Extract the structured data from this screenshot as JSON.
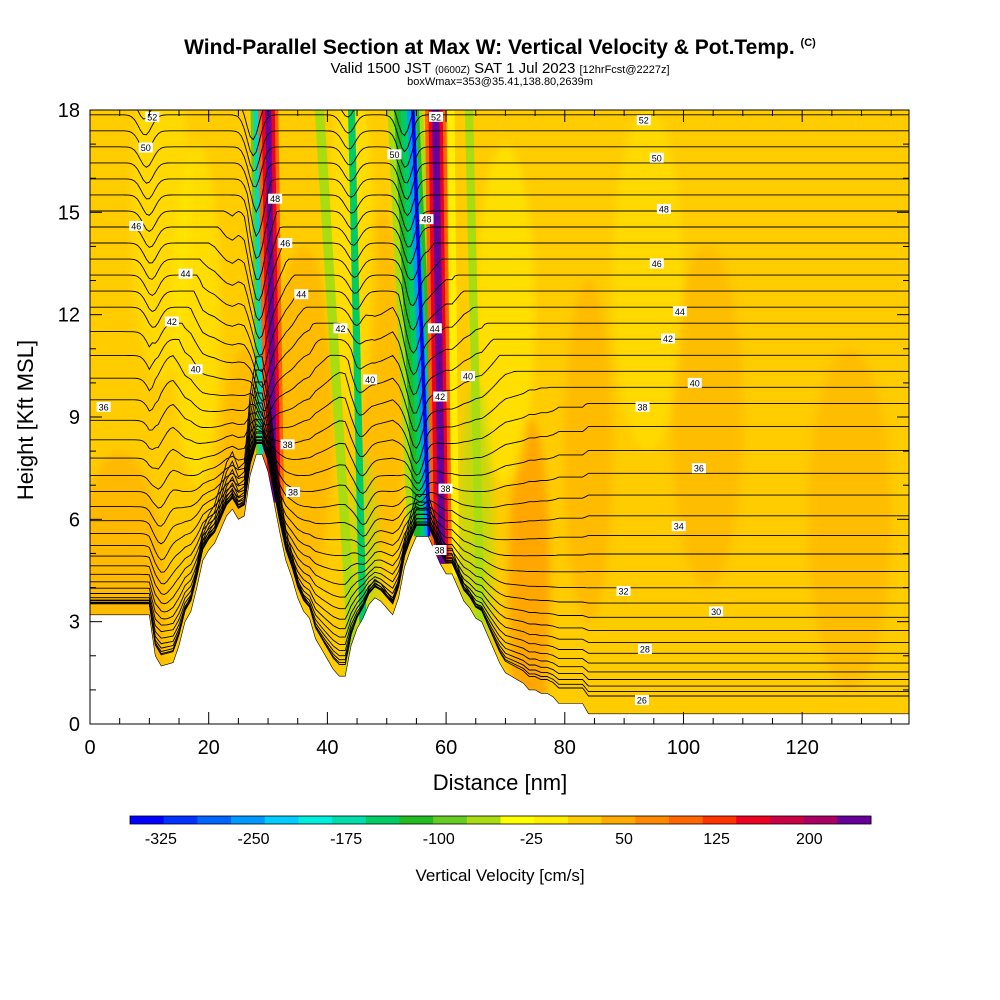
{
  "header": {
    "title": "Wind-Parallel Section at Max W: Vertical Velocity & Pot.Temp.",
    "title_mark": "(C)",
    "valid_prefix": "Valid 1500 JST ",
    "valid_small": "(0600Z)",
    "valid_main": " SAT 1 Jul 2023 ",
    "valid_suffix": "[12hrFcst@2227z]",
    "subline": "boxWmax=353@35.41,138.80,2639m"
  },
  "chart_data": {
    "type": "contour-section",
    "xlabel": "Distance [nm]",
    "ylabel": "Height [Kft MSL]",
    "xlim": [
      0,
      138
    ],
    "ylim": [
      0,
      18
    ],
    "xticks": [
      0,
      20,
      40,
      60,
      80,
      100,
      120
    ],
    "yticks": [
      0,
      3,
      6,
      9,
      12,
      15,
      18
    ],
    "colorbar": {
      "label": "Vertical Velocity [cm/s]",
      "tick_labels": [
        "-325",
        "-250",
        "-175",
        "-100",
        "-25",
        "50",
        "125",
        "200"
      ],
      "tick_values": [
        -325,
        -250,
        -175,
        -100,
        -25,
        50,
        125,
        200
      ],
      "range": [
        -350,
        250
      ],
      "colors": [
        "#0000ff",
        "#0033ff",
        "#0066ff",
        "#0099ff",
        "#00ccff",
        "#00eedd",
        "#00ddaa",
        "#00cc66",
        "#22bb22",
        "#66cc22",
        "#aadd11",
        "#ffff00",
        "#ffee00",
        "#ffcc00",
        "#ffaa00",
        "#ff8800",
        "#ff6600",
        "#ff3300",
        "#ee0022",
        "#cc0044",
        "#aa0066",
        "#660099"
      ]
    },
    "theta_contour_labels": [
      {
        "label": "52",
        "x": 10.5,
        "y": 17.8
      },
      {
        "label": "52",
        "x": 58.3,
        "y": 17.8
      },
      {
        "label": "52",
        "x": 93.3,
        "y": 17.7
      },
      {
        "label": "50",
        "x": 9.4,
        "y": 16.9
      },
      {
        "label": "50",
        "x": 51.3,
        "y": 16.7
      },
      {
        "label": "50",
        "x": 95.5,
        "y": 16.6
      },
      {
        "label": "48",
        "x": 31.2,
        "y": 15.4
      },
      {
        "label": "48",
        "x": 56.7,
        "y": 14.8
      },
      {
        "label": "48",
        "x": 96.7,
        "y": 15.1
      },
      {
        "label": "46",
        "x": 7.8,
        "y": 14.6
      },
      {
        "label": "46",
        "x": 32.9,
        "y": 14.1
      },
      {
        "label": "46",
        "x": 95.5,
        "y": 13.5
      },
      {
        "label": "44",
        "x": 16.1,
        "y": 13.2
      },
      {
        "label": "44",
        "x": 35.6,
        "y": 12.6
      },
      {
        "label": "44",
        "x": 58.1,
        "y": 11.6
      },
      {
        "label": "44",
        "x": 99.4,
        "y": 12.1
      },
      {
        "label": "42",
        "x": 13.8,
        "y": 11.8
      },
      {
        "label": "42",
        "x": 42.2,
        "y": 11.6
      },
      {
        "label": "42",
        "x": 59.0,
        "y": 9.6
      },
      {
        "label": "42",
        "x": 97.4,
        "y": 11.3
      },
      {
        "label": "40",
        "x": 17.8,
        "y": 10.4
      },
      {
        "label": "40",
        "x": 47.2,
        "y": 10.1
      },
      {
        "label": "40",
        "x": 63.7,
        "y": 10.2
      },
      {
        "label": "40",
        "x": 101.9,
        "y": 10.0
      },
      {
        "label": "38",
        "x": 93.1,
        "y": 9.3
      },
      {
        "label": "38",
        "x": 33.3,
        "y": 8.2
      },
      {
        "label": "38",
        "x": 59.9,
        "y": 6.9
      },
      {
        "label": "38",
        "x": 34.2,
        "y": 6.8
      },
      {
        "label": "38",
        "x": 58.9,
        "y": 5.1
      },
      {
        "label": "36",
        "x": 2.3,
        "y": 9.3
      },
      {
        "label": "36",
        "x": 102.6,
        "y": 7.5
      },
      {
        "label": "34",
        "x": 99.2,
        "y": 5.8
      },
      {
        "label": "32",
        "x": 89.9,
        "y": 3.9
      },
      {
        "label": "30",
        "x": 105.5,
        "y": 3.3
      },
      {
        "label": "28",
        "x": 93.5,
        "y": 2.2
      },
      {
        "label": "26",
        "x": 93.0,
        "y": 0.7
      }
    ],
    "terrain_profile": [
      [
        0,
        3.2
      ],
      [
        10,
        3.2
      ],
      [
        11,
        2
      ],
      [
        12,
        1.7
      ],
      [
        14,
        1.8
      ],
      [
        15,
        2.3
      ],
      [
        16,
        3
      ],
      [
        17,
        3.3
      ],
      [
        18,
        4
      ],
      [
        19,
        4.8
      ],
      [
        20,
        5.1
      ],
      [
        21,
        5.3
      ],
      [
        22,
        5.7
      ],
      [
        23,
        6.1
      ],
      [
        24,
        6.3
      ],
      [
        25,
        6.0
      ],
      [
        26,
        6.1
      ],
      [
        27,
        7.3
      ],
      [
        28,
        7.9
      ],
      [
        29,
        7.9
      ],
      [
        30,
        7.4
      ],
      [
        31,
        6.5
      ],
      [
        32,
        5.6
      ],
      [
        33,
        4.8
      ],
      [
        34,
        4.3
      ],
      [
        35,
        3.7
      ],
      [
        36,
        3.3
      ],
      [
        37,
        3.1
      ],
      [
        38,
        2.5
      ],
      [
        39,
        2.2
      ],
      [
        40,
        1.9
      ],
      [
        41,
        1.6
      ],
      [
        42,
        1.4
      ],
      [
        43,
        1.4
      ],
      [
        44,
        2.3
      ],
      [
        45,
        2.8
      ],
      [
        46,
        3.1
      ],
      [
        47,
        3.5
      ],
      [
        48,
        3.7
      ],
      [
        49,
        3.6
      ],
      [
        50,
        3.4
      ],
      [
        51,
        3.2
      ],
      [
        52,
        3.7
      ],
      [
        53,
        4.6
      ],
      [
        54,
        5.1
      ],
      [
        55,
        5.5
      ],
      [
        56,
        5.5
      ],
      [
        57,
        5.5
      ],
      [
        58,
        5.1
      ],
      [
        59,
        4.7
      ],
      [
        60,
        4.4
      ],
      [
        61,
        4.4
      ],
      [
        62,
        4.0
      ],
      [
        63,
        3.6
      ],
      [
        64,
        3.4
      ],
      [
        65,
        3.1
      ],
      [
        66,
        3.0
      ],
      [
        67,
        2.6
      ],
      [
        68,
        2.2
      ],
      [
        69,
        1.8
      ],
      [
        70,
        1.5
      ],
      [
        71,
        1.4
      ],
      [
        72,
        1.3
      ],
      [
        73,
        1.2
      ],
      [
        74,
        1.0
      ],
      [
        75,
        1.0
      ],
      [
        76,
        0.9
      ],
      [
        77,
        0.9
      ],
      [
        78,
        0.8
      ],
      [
        79,
        0.6
      ],
      [
        82,
        0.6
      ],
      [
        83,
        0.6
      ],
      [
        84,
        0.3
      ],
      [
        138,
        0.3
      ]
    ],
    "updraft_bands": [
      {
        "name": "updraft-1",
        "x_top": 29.5,
        "x_bottom": 31.5,
        "value": 250
      },
      {
        "name": "updraft-2",
        "x_top": 58.0,
        "x_bottom": 59.6,
        "value": 250
      }
    ],
    "downdraft_bands": [
      {
        "name": "downdraft-1",
        "x_top": 28.3,
        "x_bottom": 29.5,
        "value": -250
      },
      {
        "name": "downdraft-2",
        "x_top": 53.5,
        "x_bottom": 57.2,
        "value": -300
      }
    ],
    "grid": false
  }
}
